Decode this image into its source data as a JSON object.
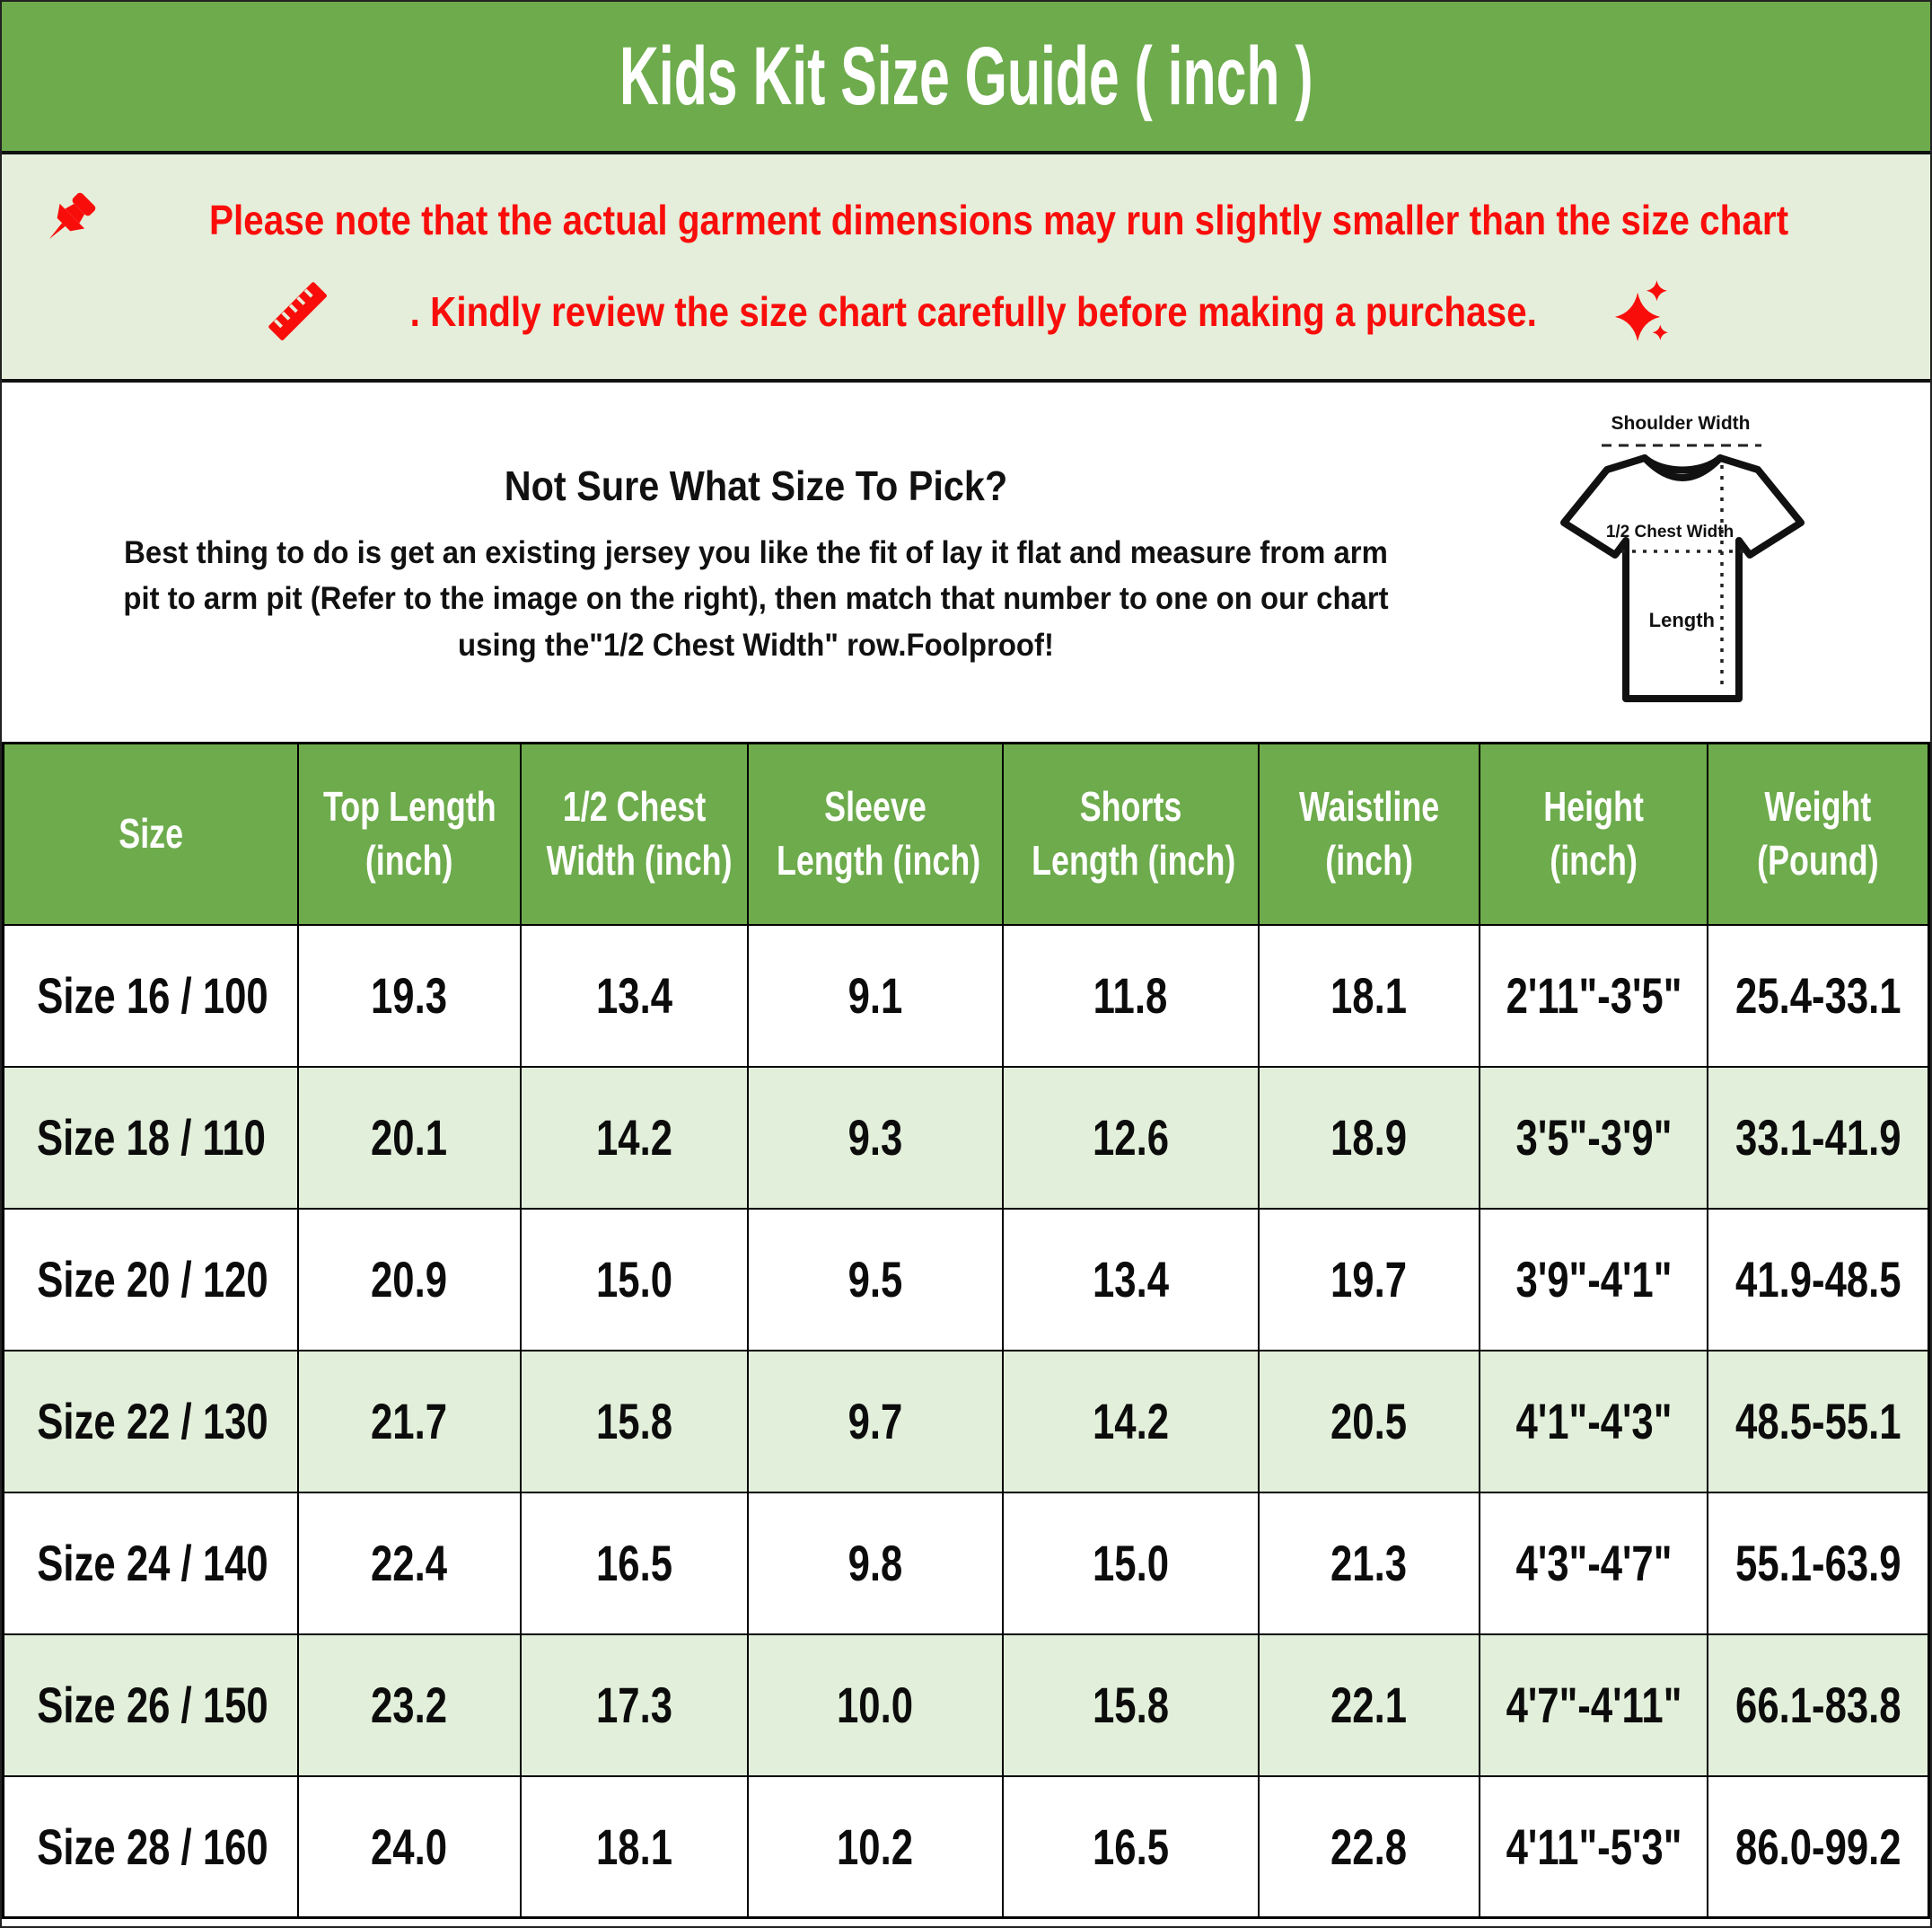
{
  "title": "Kids Kit Size Guide ( inch )",
  "notice": {
    "line1": "Please note that the actual garment dimensions may run slightly smaller than the size chart",
    "line2": ". Kindly review the size chart carefully before making a purchase."
  },
  "info": {
    "heading": "Not Sure What Size To Pick?",
    "body_lines": [
      "Best thing to do is get an existing jersey you like the fit of lay it flat and measure from arm",
      "pit to arm pit (Refer to the image on the right), then match that number to one on our chart",
      "using the\"1/2 Chest Width\" row.Foolproof!"
    ]
  },
  "diagram": {
    "labels": {
      "shoulder": "Shoulder Width",
      "chest": "1/2 Chest Width",
      "length": "Length"
    }
  },
  "table": {
    "columns": [
      [
        "Size"
      ],
      [
        "Top Length",
        "(inch)"
      ],
      [
        "1/2 Chest",
        "Width (inch)"
      ],
      [
        "Sleeve",
        "Length (inch)"
      ],
      [
        "Shorts",
        "Length (inch)"
      ],
      [
        "Waistline",
        "(inch)"
      ],
      [
        "Height",
        "(inch)"
      ],
      [
        "Weight",
        "(Pound)"
      ]
    ],
    "rows": [
      [
        "Size 16 / 100",
        "19.3",
        "13.4",
        "9.1",
        "11.8",
        "18.1",
        "2'11\"-3'5\"",
        "25.4-33.1"
      ],
      [
        "Size 18 / 110",
        "20.1",
        "14.2",
        "9.3",
        "12.6",
        "18.9",
        "3'5\"-3'9\"",
        "33.1-41.9"
      ],
      [
        "Size 20 / 120",
        "20.9",
        "15.0",
        "9.5",
        "13.4",
        "19.7",
        "3'9\"-4'1\"",
        "41.9-48.5"
      ],
      [
        "Size 22 / 130",
        "21.7",
        "15.8",
        "9.7",
        "14.2",
        "20.5",
        "4'1\"-4'3\"",
        "48.5-55.1"
      ],
      [
        "Size 24 / 140",
        "22.4",
        "16.5",
        "9.8",
        "15.0",
        "21.3",
        "4'3\"-4'7\"",
        "55.1-63.9"
      ],
      [
        "Size 26 / 150",
        "23.2",
        "17.3",
        "10.0",
        "15.8",
        "22.1",
        "4'7\"-4'11\"",
        "66.1-83.8"
      ],
      [
        "Size 28 / 160",
        "24.0",
        "18.1",
        "10.2",
        "16.5",
        "22.8",
        "4'11\"-5'3\"",
        "86.0-99.2"
      ]
    ]
  },
  "colors": {
    "header_green": "#6dab4c",
    "light_green_row": "#e2efda",
    "notice_background": "#e5eeda",
    "notice_red": "#f90d0b",
    "border_black": "#000000"
  }
}
